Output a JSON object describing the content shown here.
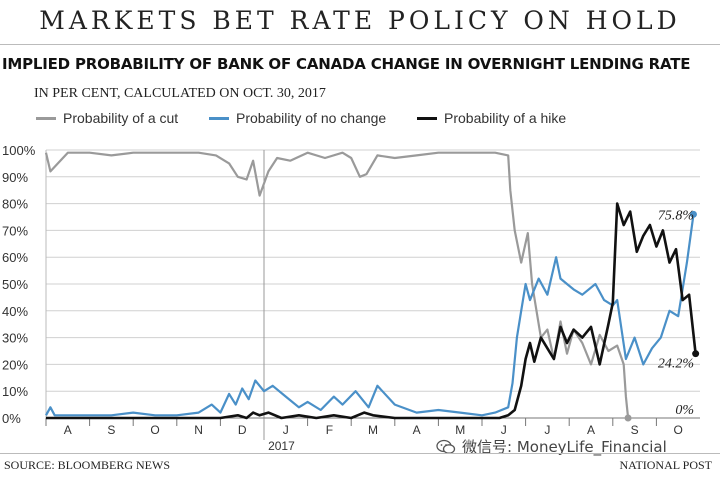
{
  "headline": "MARKETS BET RATE POLICY ON HOLD",
  "subtitle": "IMPLIED PROBABILITY OF BANK OF CANADA CHANGE IN OVERNIGHT LENDING RATE",
  "note": "IN PER CENT, CALCULATED ON OCT. 30, 2017",
  "source": "SOURCE: BLOOMBERG NEWS",
  "credit": "NATIONAL POST",
  "watermark": "微信号: MoneyLife_Financial",
  "colors": {
    "cut": "#9a9a9a",
    "no_change": "#4a90c8",
    "hike": "#111111",
    "grid": "#d0d0d0"
  },
  "chart_data": {
    "type": "line",
    "title": "IMPLIED PROBABILITY OF BANK OF CANADA CHANGE IN OVERNIGHT LENDING RATE",
    "subtitle": "IN PER CENT, CALCULATED ON OCT. 30, 2017",
    "ylabel": "",
    "ylim": [
      0,
      100
    ],
    "y_ticks": [
      "0%",
      "10%",
      "20%",
      "30%",
      "40%",
      "50%",
      "60%",
      "70%",
      "80%",
      "90%",
      "100%"
    ],
    "x_months": [
      "A",
      "S",
      "O",
      "N",
      "D",
      "J",
      "F",
      "M",
      "A",
      "M",
      "J",
      "J",
      "A",
      "S",
      "O"
    ],
    "x_year_label": "2017",
    "x_range": [
      0,
      15
    ],
    "grid": true,
    "legend_position": "top",
    "end_labels": {
      "no_change": "75.8%",
      "hike": "24.2%",
      "cut": "0%"
    },
    "series": [
      {
        "name": "Probability of a cut",
        "key": "cut",
        "x": [
          0,
          0.1,
          0.5,
          1,
          1.5,
          2,
          2.5,
          3,
          3.5,
          3.9,
          4.2,
          4.4,
          4.6,
          4.75,
          4.9,
          5.1,
          5.3,
          5.6,
          6,
          6.4,
          6.8,
          7.0,
          7.2,
          7.35,
          7.6,
          8,
          8.5,
          9,
          9.5,
          10,
          10.3,
          10.6,
          10.65,
          10.75,
          10.9,
          11.05,
          11.15,
          11.25,
          11.35,
          11.5,
          11.65,
          11.8,
          11.95,
          12.1,
          12.3,
          12.5,
          12.7,
          12.9,
          13.1,
          13.25,
          13.3,
          13.35
        ],
        "values": [
          99,
          92,
          99,
          99,
          98,
          99,
          99,
          99,
          99,
          98,
          95,
          90,
          89,
          96,
          83,
          92,
          97,
          96,
          99,
          97,
          99,
          97,
          90,
          91,
          98,
          97,
          98,
          99,
          99,
          99,
          99,
          98,
          85,
          70,
          58,
          69,
          50,
          40,
          30,
          33,
          22,
          36,
          24,
          33,
          28,
          20,
          31,
          25,
          27,
          20,
          8,
          0
        ]
      },
      {
        "name": "Probability of no change",
        "key": "no_change",
        "x": [
          0,
          0.1,
          0.2,
          0.5,
          1,
          1.5,
          2,
          2.5,
          3,
          3.5,
          3.8,
          4.0,
          4.2,
          4.35,
          4.5,
          4.65,
          4.8,
          5.0,
          5.2,
          5.5,
          5.8,
          6.0,
          6.3,
          6.6,
          6.8,
          7.1,
          7.4,
          7.6,
          8,
          8.5,
          9,
          9.5,
          10,
          10.3,
          10.6,
          10.7,
          10.8,
          10.9,
          11.0,
          11.1,
          11.3,
          11.5,
          11.7,
          11.8,
          11.95,
          12.1,
          12.3,
          12.6,
          12.8,
          13.0,
          13.1,
          13.3,
          13.5,
          13.7,
          13.9,
          14.1,
          14.3,
          14.5,
          14.7,
          14.85
        ],
        "values": [
          1,
          4,
          1,
          1,
          1,
          1,
          2,
          1,
          1,
          2,
          5,
          2,
          9,
          5,
          11,
          7,
          14,
          10,
          12,
          8,
          4,
          6,
          3,
          8,
          5,
          10,
          4,
          12,
          5,
          2,
          3,
          2,
          1,
          2,
          4,
          13,
          30,
          40,
          50,
          44,
          52,
          46,
          60,
          52,
          50,
          48,
          46,
          50,
          44,
          42,
          44,
          22,
          30,
          20,
          26,
          30,
          40,
          38,
          58,
          76
        ]
      },
      {
        "name": "Probability of a hike",
        "key": "hike",
        "x": [
          0,
          1,
          2,
          3,
          4,
          4.4,
          4.6,
          4.75,
          4.9,
          5.1,
          5.4,
          5.8,
          6.2,
          6.6,
          7,
          7.3,
          7.5,
          8,
          8.5,
          9,
          9.5,
          10,
          10.4,
          10.6,
          10.75,
          10.9,
          11.0,
          11.1,
          11.2,
          11.35,
          11.5,
          11.65,
          11.8,
          11.95,
          12.1,
          12.3,
          12.5,
          12.7,
          12.9,
          13.0,
          13.1,
          13.25,
          13.4,
          13.55,
          13.7,
          13.85,
          14.0,
          14.15,
          14.3,
          14.45,
          14.6,
          14.75,
          14.9
        ],
        "values": [
          0,
          0,
          0,
          0,
          0,
          1,
          0,
          2,
          1,
          2,
          0,
          1,
          0,
          1,
          0,
          2,
          1,
          0,
          0,
          0,
          0,
          0,
          0,
          1,
          3,
          12,
          22,
          28,
          21,
          30,
          26,
          22,
          34,
          28,
          33,
          30,
          34,
          20,
          35,
          43,
          80,
          72,
          77,
          62,
          68,
          72,
          64,
          70,
          58,
          63,
          44,
          46,
          24
        ]
      }
    ]
  }
}
